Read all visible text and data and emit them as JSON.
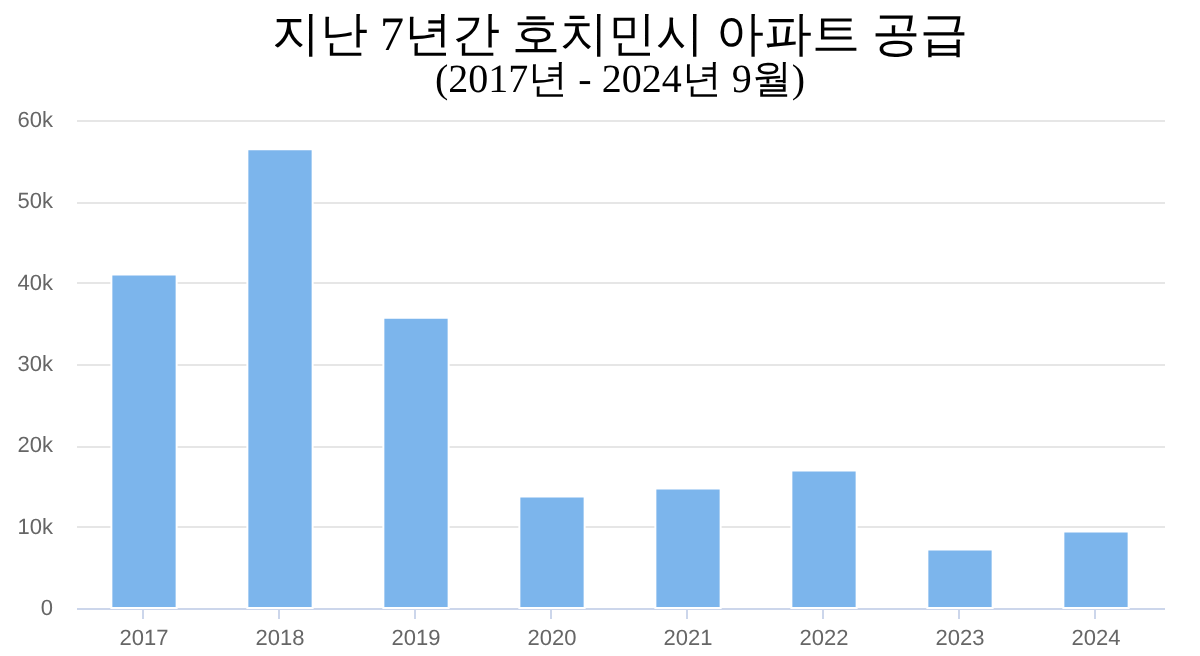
{
  "chart_data": {
    "type": "bar",
    "title": "지난 7년간 호치민시 아파트 공급",
    "subtitle": "(2017년 - 2024년 9월)",
    "categories": [
      "2017",
      "2018",
      "2019",
      "2020",
      "2021",
      "2022",
      "2023",
      "2024"
    ],
    "values": [
      41000,
      56400,
      35700,
      13700,
      14700,
      16900,
      7200,
      9400
    ],
    "color": "#7cb5ec",
    "ylim": [
      0,
      60000
    ],
    "yticks": [
      {
        "value": 0,
        "label": "0"
      },
      {
        "value": 10000,
        "label": "10k"
      },
      {
        "value": 20000,
        "label": "20k"
      },
      {
        "value": 30000,
        "label": "30k"
      },
      {
        "value": 40000,
        "label": "40k"
      },
      {
        "value": 50000,
        "label": "50k"
      },
      {
        "value": 60000,
        "label": "60k"
      }
    ],
    "grid": "y"
  }
}
